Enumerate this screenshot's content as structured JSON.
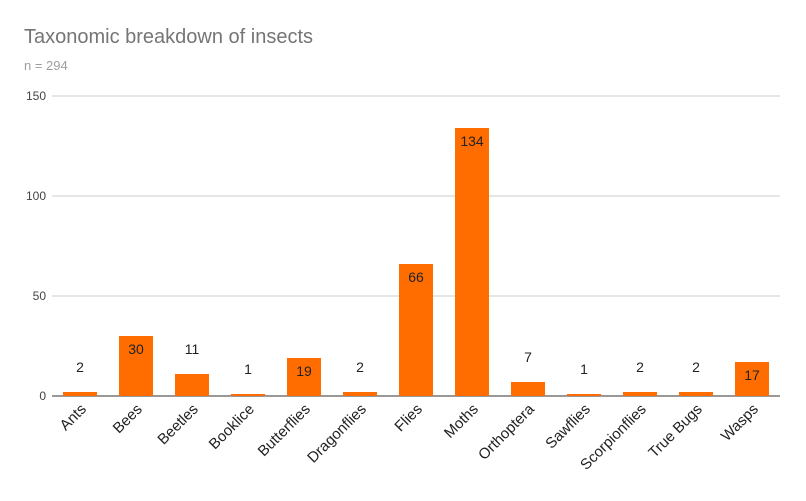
{
  "chart_data": {
    "type": "bar",
    "title": "Taxonomic breakdown of insects",
    "subtitle": "n = 294",
    "xlabel": "",
    "ylabel": "",
    "categories": [
      "Ants",
      "Bees",
      "Beetles",
      "Booklice",
      "Butterflies",
      "Dragonflies",
      "Flies",
      "Moths",
      "Orthoptera",
      "Sawflies",
      "Scorpionflies",
      "True Bugs",
      "Wasps"
    ],
    "values": [
      2,
      30,
      11,
      1,
      19,
      2,
      66,
      134,
      7,
      1,
      2,
      2,
      17
    ],
    "ylim": [
      0,
      150
    ],
    "yticks": [
      0,
      50,
      100,
      150
    ],
    "grid": true,
    "bar_color": "#ff6d00"
  }
}
